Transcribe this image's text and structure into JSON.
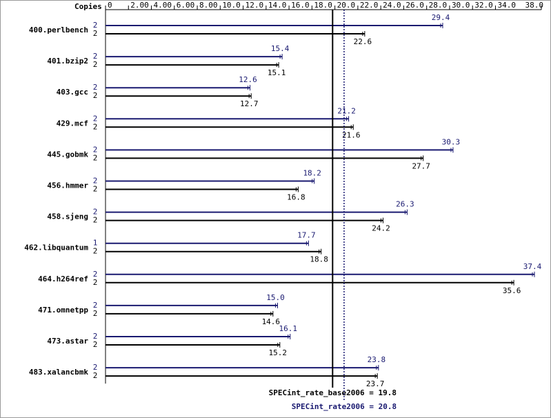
{
  "chart_data": {
    "type": "bar",
    "orientation": "horizontal",
    "copies_label": "Copies",
    "categories": [
      "400.perlbench",
      "401.bzip2",
      "403.gcc",
      "429.mcf",
      "445.gobmk",
      "456.hmmer",
      "458.sjeng",
      "462.libquantum",
      "464.h264ref",
      "471.omnetpp",
      "473.astar",
      "483.xalancbmk"
    ],
    "series": [
      {
        "color": "#191970",
        "copies": [
          2,
          2,
          2,
          2,
          2,
          2,
          2,
          1,
          2,
          2,
          2,
          2
        ],
        "values": [
          29.4,
          15.4,
          12.6,
          21.2,
          30.3,
          18.2,
          26.3,
          17.7,
          37.4,
          15.0,
          16.1,
          23.8
        ],
        "value_labels": [
          "29.4",
          "15.4",
          "12.6",
          "21.2",
          "30.3",
          "18.2",
          "26.3",
          "17.7",
          "37.4",
          "15.0",
          "16.1",
          "23.8"
        ]
      },
      {
        "color": "#000000",
        "copies": [
          2,
          2,
          2,
          2,
          2,
          2,
          2,
          2,
          2,
          2,
          2,
          2
        ],
        "values": [
          22.6,
          15.1,
          12.7,
          21.6,
          27.7,
          16.8,
          24.2,
          18.8,
          35.6,
          14.6,
          15.2,
          23.7
        ]
      }
    ],
    "xlim": [
      0,
      38
    ],
    "xticks": [
      0,
      {
        "value": 2,
        "label": "2.00"
      },
      {
        "value": 4,
        "label": "4.00"
      },
      {
        "value": 6,
        "label": "6.00"
      },
      {
        "value": 8,
        "label": "8.00"
      },
      {
        "value": 10,
        "label": "10.0"
      },
      {
        "value": 12,
        "label": "12.0"
      },
      {
        "value": 14,
        "label": "14.0"
      },
      {
        "value": 16,
        "label": "16.0"
      },
      {
        "value": 18,
        "label": "18.0"
      },
      {
        "value": 20,
        "label": "20.0"
      },
      {
        "value": 22,
        "label": "22.0"
      },
      {
        "value": 24,
        "label": "24.0"
      },
      {
        "value": 26,
        "label": "26.0"
      },
      {
        "value": 28,
        "label": "28.0"
      },
      {
        "value": 30,
        "label": "30.0"
      },
      {
        "value": 32,
        "label": "32.0"
      },
      {
        "value": 34,
        "label": "34.0"
      },
      {
        "value": 38,
        "label": "38.0"
      }
    ],
    "reference_lines": [
      {
        "label": "SPECint_rate_base2006 = 19.8",
        "value": 19.8,
        "color": "#000000",
        "style": "solid"
      },
      {
        "label": "SPECint_rate2006 = 20.8",
        "value": 20.8,
        "color": "#191970",
        "style": "dotted"
      }
    ]
  }
}
